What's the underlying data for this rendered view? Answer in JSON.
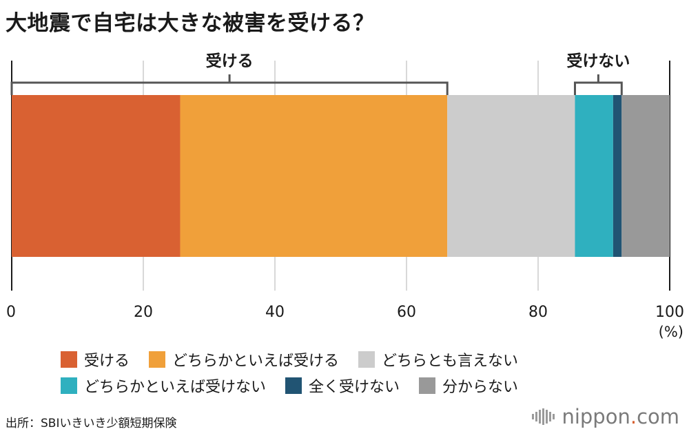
{
  "title": "大地震で自宅は大きな被害を受ける？",
  "unit": "(%)",
  "source": "出所：SBIいきいき少額短期保険",
  "brand": {
    "name_left": "nippon",
    "dot": ".",
    "name_right": "com",
    "logo_icon": "nippon-bars-icon"
  },
  "brackets": [
    {
      "label": "受ける",
      "from": 0,
      "to": 66.2
    },
    {
      "label": "受けない",
      "from": 85.6,
      "to": 92.7
    }
  ],
  "chart_data": {
    "type": "stacked-bar-horizontal",
    "title": "大地震で自宅は大きな被害を受ける？",
    "xlim": [
      0,
      100
    ],
    "xticks": [
      "0",
      "20",
      "40",
      "60",
      "80",
      "100"
    ],
    "grid": true,
    "legend_position": "bottom",
    "series": [
      {
        "name": "受ける",
        "value": 25.6,
        "color": "#d96132"
      },
      {
        "name": "どちらかといえば受ける",
        "value": 40.6,
        "color": "#f0a03a"
      },
      {
        "name": "どちらとも言えない",
        "value": 19.4,
        "color": "#cccccc"
      },
      {
        "name": "どちらかといえば受けない",
        "value": 5.8,
        "color": "#2fb0bf"
      },
      {
        "name": "全く受けない",
        "value": 1.3,
        "color": "#215473"
      },
      {
        "name": "分からない",
        "value": 7.3,
        "color": "#999999"
      }
    ]
  },
  "legend_rows": [
    [
      0,
      1,
      2
    ],
    [
      3,
      4,
      5
    ]
  ]
}
